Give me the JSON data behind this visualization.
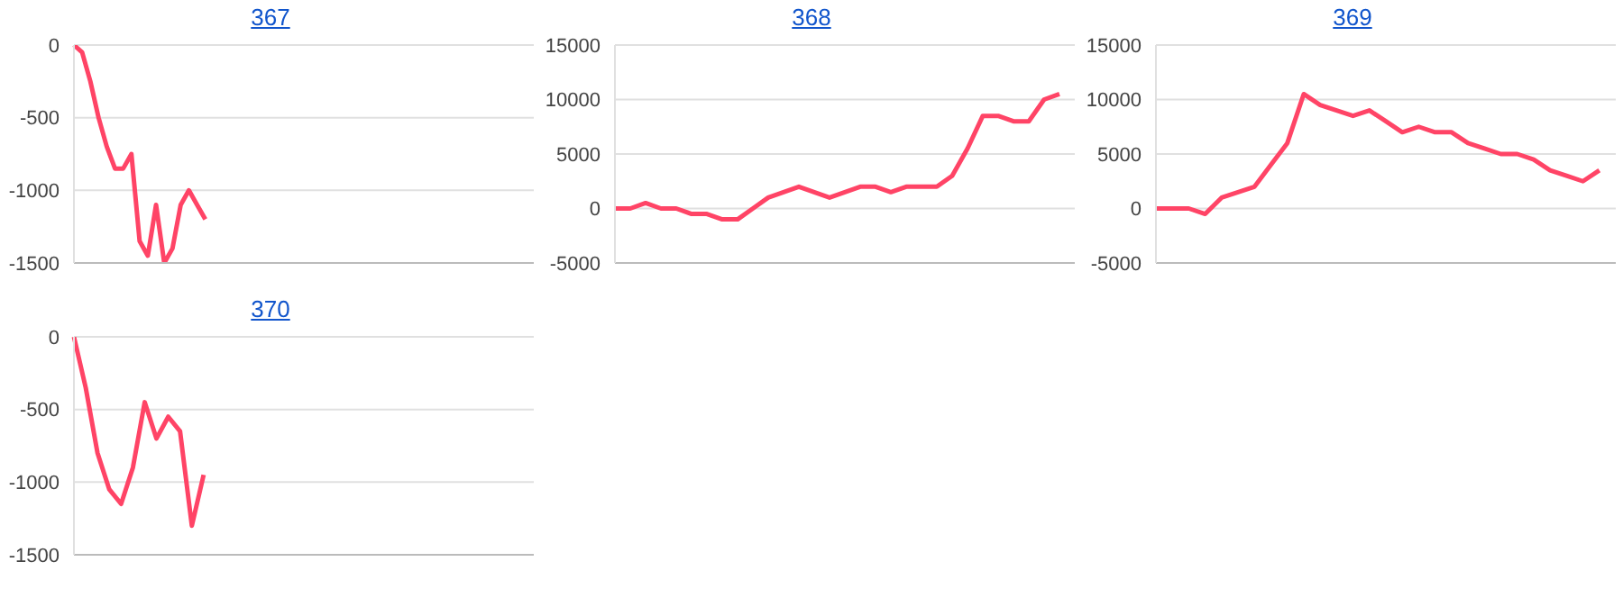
{
  "chart_data": [
    {
      "type": "line",
      "title": "367",
      "categories": [
        null,
        null,
        null,
        null,
        null,
        null,
        null,
        null,
        null,
        null,
        null,
        null,
        null,
        null,
        null,
        null,
        null,
        null,
        null,
        null,
        null,
        null,
        null,
        null,
        null,
        null,
        null,
        null,
        null,
        null,
        null,
        null,
        null,
        null,
        null,
        null,
        null,
        null,
        null,
        null,
        null,
        null,
        null,
        null,
        null,
        null,
        null,
        null,
        null,
        null,
        null,
        null,
        null,
        null,
        null,
        null,
        null
      ],
      "series": [
        {
          "color": "#ff4466",
          "values": [
            0,
            -50,
            -250,
            -500,
            -700,
            -850,
            -850,
            -750,
            -1350,
            -1450,
            -1100,
            -1500,
            -1400,
            -1100,
            -1000,
            -1100,
            -1200,
            null,
            null,
            null,
            null,
            null,
            null,
            null,
            null,
            null,
            null,
            null,
            null,
            null,
            null,
            null,
            null,
            null,
            null,
            null,
            null,
            null,
            null,
            null,
            null,
            null,
            null,
            null,
            null,
            null,
            null,
            null,
            null,
            null,
            null,
            null,
            null,
            null,
            null,
            null,
            null
          ]
        }
      ],
      "ylim": [
        -1500,
        0
      ],
      "yticks": [
        -1500,
        -1000,
        -500,
        0
      ],
      "grid": "y",
      "tick_labels": "y",
      "marker": "none",
      "legend": false
    },
    {
      "type": "line",
      "title": "368",
      "categories": [
        null,
        null,
        null,
        null,
        null,
        null,
        null,
        null,
        null,
        null,
        null,
        null,
        null,
        null,
        null,
        null,
        null,
        null,
        null,
        null,
        null,
        null,
        null,
        null,
        null,
        null,
        null,
        null,
        null,
        null,
        null
      ],
      "series": [
        {
          "color": "#ff4466",
          "values": [
            0,
            0,
            500,
            0,
            0,
            -500,
            -500,
            -1000,
            -1000,
            0,
            1000,
            1500,
            2000,
            1500,
            1000,
            1500,
            2000,
            2000,
            1500,
            2000,
            2000,
            2000,
            3000,
            5500,
            8500,
            8500,
            8000,
            8000,
            10000,
            10500,
            null
          ]
        }
      ],
      "ylim": [
        -5000,
        15000
      ],
      "yticks": [
        -5000,
        0,
        5000,
        10000,
        15000
      ],
      "grid": "y",
      "tick_labels": "y",
      "marker": "none",
      "legend": false
    },
    {
      "type": "line",
      "title": "369",
      "categories": [
        null,
        null,
        null,
        null,
        null,
        null,
        null,
        null,
        null,
        null,
        null,
        null,
        null,
        null,
        null,
        null,
        null,
        null,
        null,
        null,
        null,
        null,
        null,
        null,
        null,
        null,
        null,
        null,
        null
      ],
      "series": [
        {
          "color": "#ff4466",
          "values": [
            0,
            0,
            0,
            -500,
            1000,
            1500,
            2000,
            4000,
            6000,
            10500,
            9500,
            9000,
            8500,
            9000,
            8000,
            7000,
            7500,
            7000,
            7000,
            6000,
            5500,
            5000,
            5000,
            4500,
            3500,
            3000,
            2500,
            3500,
            null
          ]
        }
      ],
      "ylim": [
        -5000,
        15000
      ],
      "yticks": [
        -5000,
        0,
        5000,
        10000,
        15000
      ],
      "grid": "y",
      "tick_labels": "y",
      "marker": "none",
      "legend": false
    },
    {
      "type": "line",
      "title": "370",
      "categories": [
        null,
        null,
        null,
        null,
        null,
        null,
        null,
        null,
        null,
        null,
        null,
        null,
        null,
        null,
        null,
        null,
        null,
        null,
        null,
        null,
        null,
        null,
        null,
        null,
        null,
        null,
        null,
        null,
        null,
        null,
        null,
        null,
        null,
        null,
        null,
        null,
        null,
        null,
        null,
        null
      ],
      "series": [
        {
          "color": "#ff4466",
          "values": [
            0,
            -350,
            -800,
            -1050,
            -1150,
            -900,
            -450,
            -700,
            -550,
            -650,
            -1300,
            -950,
            null,
            null,
            null,
            null,
            null,
            null,
            null,
            null,
            null,
            null,
            null,
            null,
            null,
            null,
            null,
            null,
            null,
            null,
            null,
            null,
            null,
            null,
            null,
            null,
            null,
            null,
            null,
            null
          ]
        }
      ],
      "ylim": [
        -1500,
        0
      ],
      "yticks": [
        -1500,
        -1000,
        -500,
        0
      ],
      "grid": "y",
      "tick_labels": "y",
      "marker": "none",
      "legend": false
    }
  ]
}
